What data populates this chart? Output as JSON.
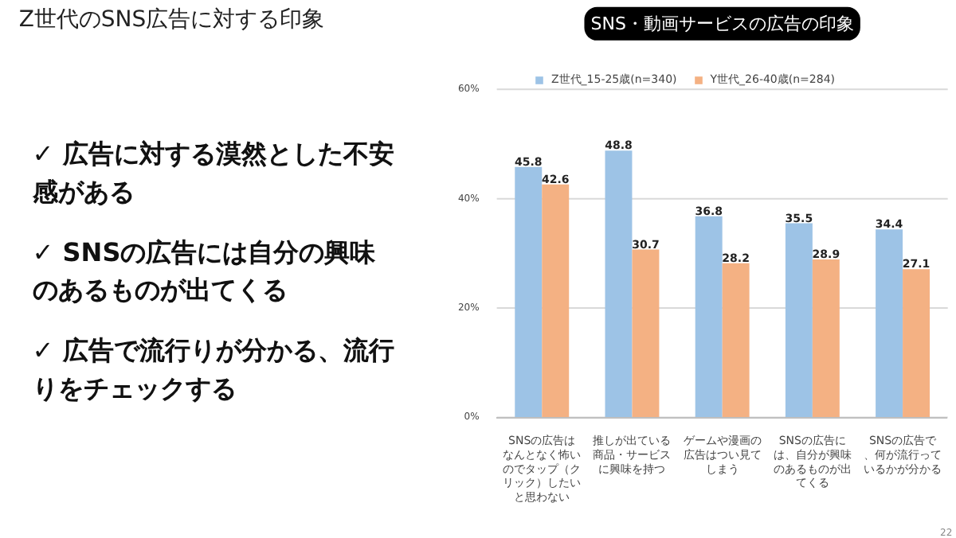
{
  "chart_data": {
    "type": "bar",
    "title": "Z世代のSNS広告に対する印象",
    "subtitle": "SNS・動画サービスの広告の印象",
    "categories": [
      "SNSの広告はなんとなく怖いのでタップ（クリック）したいと思わない",
      "推しが出ている商品・サービスに興味を持つ",
      "ゲームや漫画の広告はつい見てしまう",
      "SNSの広告には、自分が興味のあるものが出てくる",
      "SNSの広告で、何が流行っているかが分かる"
    ],
    "series": [
      {
        "name": "Z世代_15-25歳(n=340)",
        "color": "#9dc3e6",
        "values": [
          45.8,
          48.8,
          36.8,
          35.5,
          34.4
        ]
      },
      {
        "name": "Y世代_26-40歳(n=284)",
        "color": "#f4b183",
        "values": [
          42.6,
          30.7,
          28.2,
          28.9,
          27.1
        ]
      }
    ],
    "ylim": [
      0,
      60
    ],
    "yticks": [
      {
        "value": 0,
        "label": "0%"
      },
      {
        "value": 20,
        "label": "20%"
      },
      {
        "value": 40,
        "label": "40%"
      },
      {
        "value": 60,
        "label": "60%"
      }
    ],
    "grid": "y",
    "legend": "top",
    "data_labels": true,
    "annotations": [
      "✓ 広告に対する漠然とした不安感がある",
      "✓ SNSの広告には自分の興味のあるものが出てくる",
      "✓ 広告で流行りが分かる、流行りをチェックする",
      "22"
    ]
  }
}
